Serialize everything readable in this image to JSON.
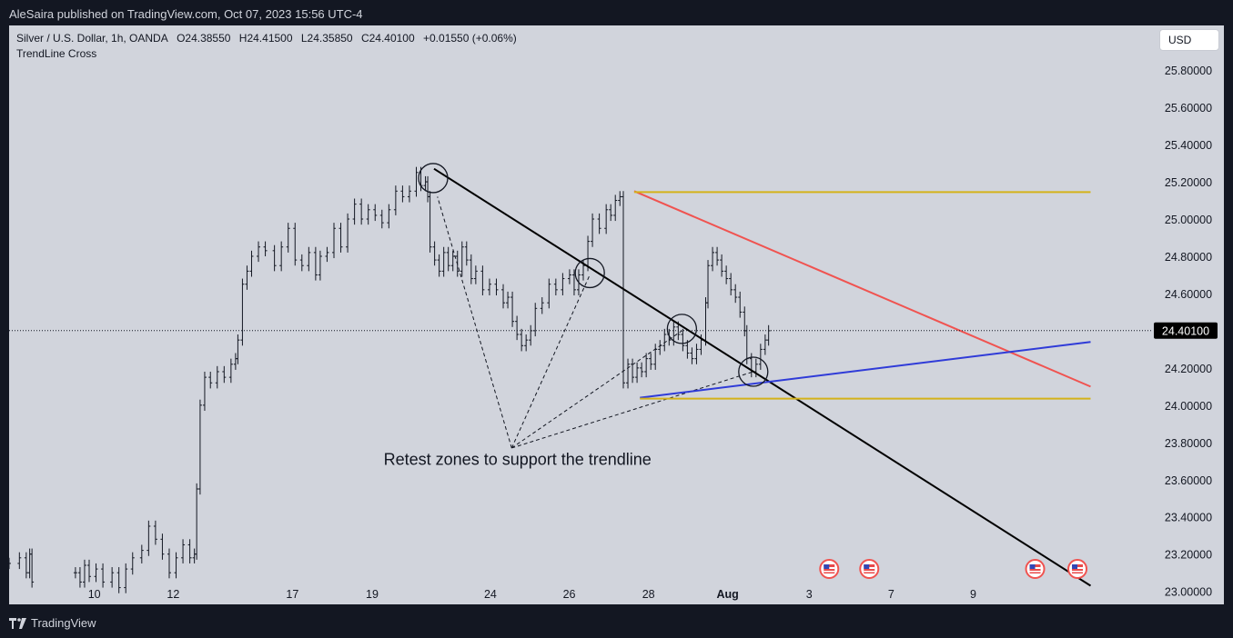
{
  "header": {
    "publisher_line": "AleSaira published on TradingView.com, Oct 07, 2023 15:56 UTC-4"
  },
  "legend": {
    "symbol": "Silver / U.S. Dollar, 1h, OANDA",
    "open": "O24.38550",
    "high": "H24.41500",
    "low": "L24.35850",
    "close": "C24.40100",
    "change": "+0.01550 (+0.06%)",
    "indicator": "TrendLine Cross"
  },
  "currency_button": "USD",
  "footer": {
    "brand": "TradingView"
  },
  "colors": {
    "background": "#131722",
    "chart_bg": "#d1d4dc",
    "candles": "#131722",
    "trendline_black": "#000000",
    "line_red": "#f05350",
    "line_blue": "#2f3bd8",
    "line_gold": "#d4b21a",
    "price_label_bg": "#000000"
  },
  "chart_data": {
    "type": "line",
    "title": "Silver / U.S. Dollar, 1h, OANDA",
    "ylim": [
      22.93,
      26.04
    ],
    "yticks": [
      "25.80000",
      "25.60000",
      "25.40000",
      "25.20000",
      "25.00000",
      "24.80000",
      "24.60000",
      "24.40000",
      "24.20000",
      "24.00000",
      "23.80000",
      "23.60000",
      "23.40000",
      "23.20000",
      "23.00000"
    ],
    "ytick_values": [
      25.8,
      25.6,
      25.4,
      25.2,
      25.0,
      24.8,
      24.6,
      24.4,
      24.2,
      24.0,
      23.8,
      23.6,
      23.4,
      23.2,
      23.0
    ],
    "xticks": [
      "10",
      "12",
      "17",
      "19",
      "24",
      "26",
      "28",
      "Aug",
      "3",
      "7",
      "9"
    ],
    "xtick_positions": [
      0.0745,
      0.1435,
      0.2477,
      0.3174,
      0.4208,
      0.4897,
      0.559,
      0.6282,
      0.6995,
      0.7712,
      0.8429
    ],
    "last_price": "24.40100",
    "last_price_value": 24.401,
    "price_series": [
      [
        0.0,
        23.15
      ],
      [
        0.009,
        23.18
      ],
      [
        0.015,
        23.1
      ],
      [
        0.018,
        23.2
      ],
      [
        0.02,
        23.05
      ],
      [
        0.058,
        23.1
      ],
      [
        0.062,
        23.05
      ],
      [
        0.066,
        23.14
      ],
      [
        0.07,
        23.08
      ],
      [
        0.076,
        23.12
      ],
      [
        0.082,
        23.05
      ],
      [
        0.09,
        23.1
      ],
      [
        0.096,
        23.02
      ],
      [
        0.102,
        23.12
      ],
      [
        0.108,
        23.18
      ],
      [
        0.116,
        23.22
      ],
      [
        0.122,
        23.35
      ],
      [
        0.128,
        23.28
      ],
      [
        0.134,
        23.2
      ],
      [
        0.14,
        23.1
      ],
      [
        0.146,
        23.18
      ],
      [
        0.152,
        23.25
      ],
      [
        0.158,
        23.18
      ],
      [
        0.162,
        23.2
      ],
      [
        0.164,
        23.55
      ],
      [
        0.167,
        24.0
      ],
      [
        0.171,
        24.15
      ],
      [
        0.176,
        24.12
      ],
      [
        0.182,
        24.18
      ],
      [
        0.188,
        24.15
      ],
      [
        0.194,
        24.22
      ],
      [
        0.198,
        24.25
      ],
      [
        0.2,
        24.35
      ],
      [
        0.204,
        24.65
      ],
      [
        0.208,
        24.72
      ],
      [
        0.212,
        24.8
      ],
      [
        0.218,
        24.85
      ],
      [
        0.224,
        24.83
      ],
      [
        0.232,
        24.75
      ],
      [
        0.238,
        24.85
      ],
      [
        0.244,
        24.95
      ],
      [
        0.25,
        24.78
      ],
      [
        0.256,
        24.75
      ],
      [
        0.262,
        24.82
      ],
      [
        0.268,
        24.7
      ],
      [
        0.272,
        24.8
      ],
      [
        0.278,
        24.82
      ],
      [
        0.284,
        24.95
      ],
      [
        0.29,
        24.85
      ],
      [
        0.296,
        25.0
      ],
      [
        0.302,
        25.08
      ],
      [
        0.308,
        25.0
      ],
      [
        0.314,
        25.05
      ],
      [
        0.32,
        25.02
      ],
      [
        0.326,
        24.98
      ],
      [
        0.332,
        25.05
      ],
      [
        0.338,
        25.15
      ],
      [
        0.344,
        25.12
      ],
      [
        0.35,
        25.15
      ],
      [
        0.356,
        25.25
      ],
      [
        0.36,
        25.18
      ],
      [
        0.364,
        25.2
      ],
      [
        0.366,
        25.12
      ],
      [
        0.368,
        24.85
      ],
      [
        0.372,
        24.78
      ],
      [
        0.376,
        24.72
      ],
      [
        0.38,
        24.82
      ],
      [
        0.384,
        24.75
      ],
      [
        0.388,
        24.8
      ],
      [
        0.392,
        24.72
      ],
      [
        0.396,
        24.85
      ],
      [
        0.4,
        24.78
      ],
      [
        0.404,
        24.68
      ],
      [
        0.408,
        24.72
      ],
      [
        0.414,
        24.62
      ],
      [
        0.42,
        24.65
      ],
      [
        0.426,
        24.62
      ],
      [
        0.432,
        24.55
      ],
      [
        0.436,
        24.58
      ],
      [
        0.44,
        24.45
      ],
      [
        0.444,
        24.38
      ],
      [
        0.448,
        24.32
      ],
      [
        0.452,
        24.35
      ],
      [
        0.456,
        24.4
      ],
      [
        0.46,
        24.52
      ],
      [
        0.466,
        24.55
      ],
      [
        0.472,
        24.65
      ],
      [
        0.478,
        24.62
      ],
      [
        0.484,
        24.68
      ],
      [
        0.49,
        24.7
      ],
      [
        0.494,
        24.62
      ],
      [
        0.498,
        24.7
      ],
      [
        0.502,
        24.75
      ],
      [
        0.506,
        24.88
      ],
      [
        0.51,
        25.0
      ],
      [
        0.516,
        24.95
      ],
      [
        0.522,
        25.05
      ],
      [
        0.526,
        25.02
      ],
      [
        0.53,
        25.1
      ],
      [
        0.534,
        25.12
      ],
      [
        0.537,
        24.12
      ],
      [
        0.541,
        24.22
      ],
      [
        0.545,
        24.15
      ],
      [
        0.549,
        24.2
      ],
      [
        0.553,
        24.18
      ],
      [
        0.557,
        24.25
      ],
      [
        0.561,
        24.22
      ],
      [
        0.565,
        24.3
      ],
      [
        0.569,
        24.32
      ],
      [
        0.573,
        24.38
      ],
      [
        0.577,
        24.35
      ],
      [
        0.581,
        24.42
      ],
      [
        0.585,
        24.38
      ],
      [
        0.589,
        24.32
      ],
      [
        0.593,
        24.28
      ],
      [
        0.597,
        24.25
      ],
      [
        0.601,
        24.3
      ],
      [
        0.605,
        24.35
      ],
      [
        0.609,
        24.55
      ],
      [
        0.611,
        24.75
      ],
      [
        0.615,
        24.82
      ],
      [
        0.619,
        24.78
      ],
      [
        0.623,
        24.72
      ],
      [
        0.627,
        24.68
      ],
      [
        0.631,
        24.62
      ],
      [
        0.635,
        24.58
      ],
      [
        0.639,
        24.5
      ],
      [
        0.643,
        24.4
      ],
      [
        0.645,
        24.25
      ],
      [
        0.649,
        24.18
      ],
      [
        0.653,
        24.22
      ],
      [
        0.657,
        24.3
      ],
      [
        0.661,
        24.35
      ],
      [
        0.664,
        24.4
      ]
    ],
    "drawings": [
      {
        "name": "black-trendline",
        "color": "#000000",
        "x": [
          0.3715,
          0.9455
        ],
        "y": [
          25.27,
          23.03
        ]
      },
      {
        "name": "red-line",
        "color": "#f05350",
        "x": [
          0.5465,
          0.9455
        ],
        "y": [
          25.15,
          24.1
        ]
      },
      {
        "name": "blue-line",
        "color": "#2f3bd8",
        "x": [
          0.5515,
          0.9455
        ],
        "y": [
          24.04,
          24.34
        ]
      },
      {
        "name": "gold-top-line",
        "color": "#d4b21a",
        "x": [
          0.5465,
          0.9455
        ],
        "y": [
          25.145,
          25.145
        ]
      },
      {
        "name": "gold-bottom-line",
        "color": "#d4b21a",
        "x": [
          0.5515,
          0.9455
        ],
        "y": [
          24.035,
          24.035
        ]
      }
    ],
    "circles": [
      {
        "x": 0.3707,
        "y": 25.22
      },
      {
        "x": 0.5077,
        "y": 24.71
      },
      {
        "x": 0.5882,
        "y": 24.41
      },
      {
        "x": 0.6506,
        "y": 24.18
      }
    ],
    "dashed_fan": {
      "apex": {
        "x": 0.4394,
        "y": 23.77
      },
      "targets": [
        {
          "x": 0.3745,
          "y": 25.12
        },
        {
          "x": 0.5077,
          "y": 24.7
        },
        {
          "x": 0.5882,
          "y": 24.4
        },
        {
          "x": 0.6506,
          "y": 24.18
        }
      ]
    },
    "annotation": "Retest zones to support the trendline",
    "annotation_anchor": {
      "x": 0.4445,
      "y": 23.68
    },
    "event_markers": [
      0.717,
      0.752,
      0.897,
      0.934
    ]
  }
}
